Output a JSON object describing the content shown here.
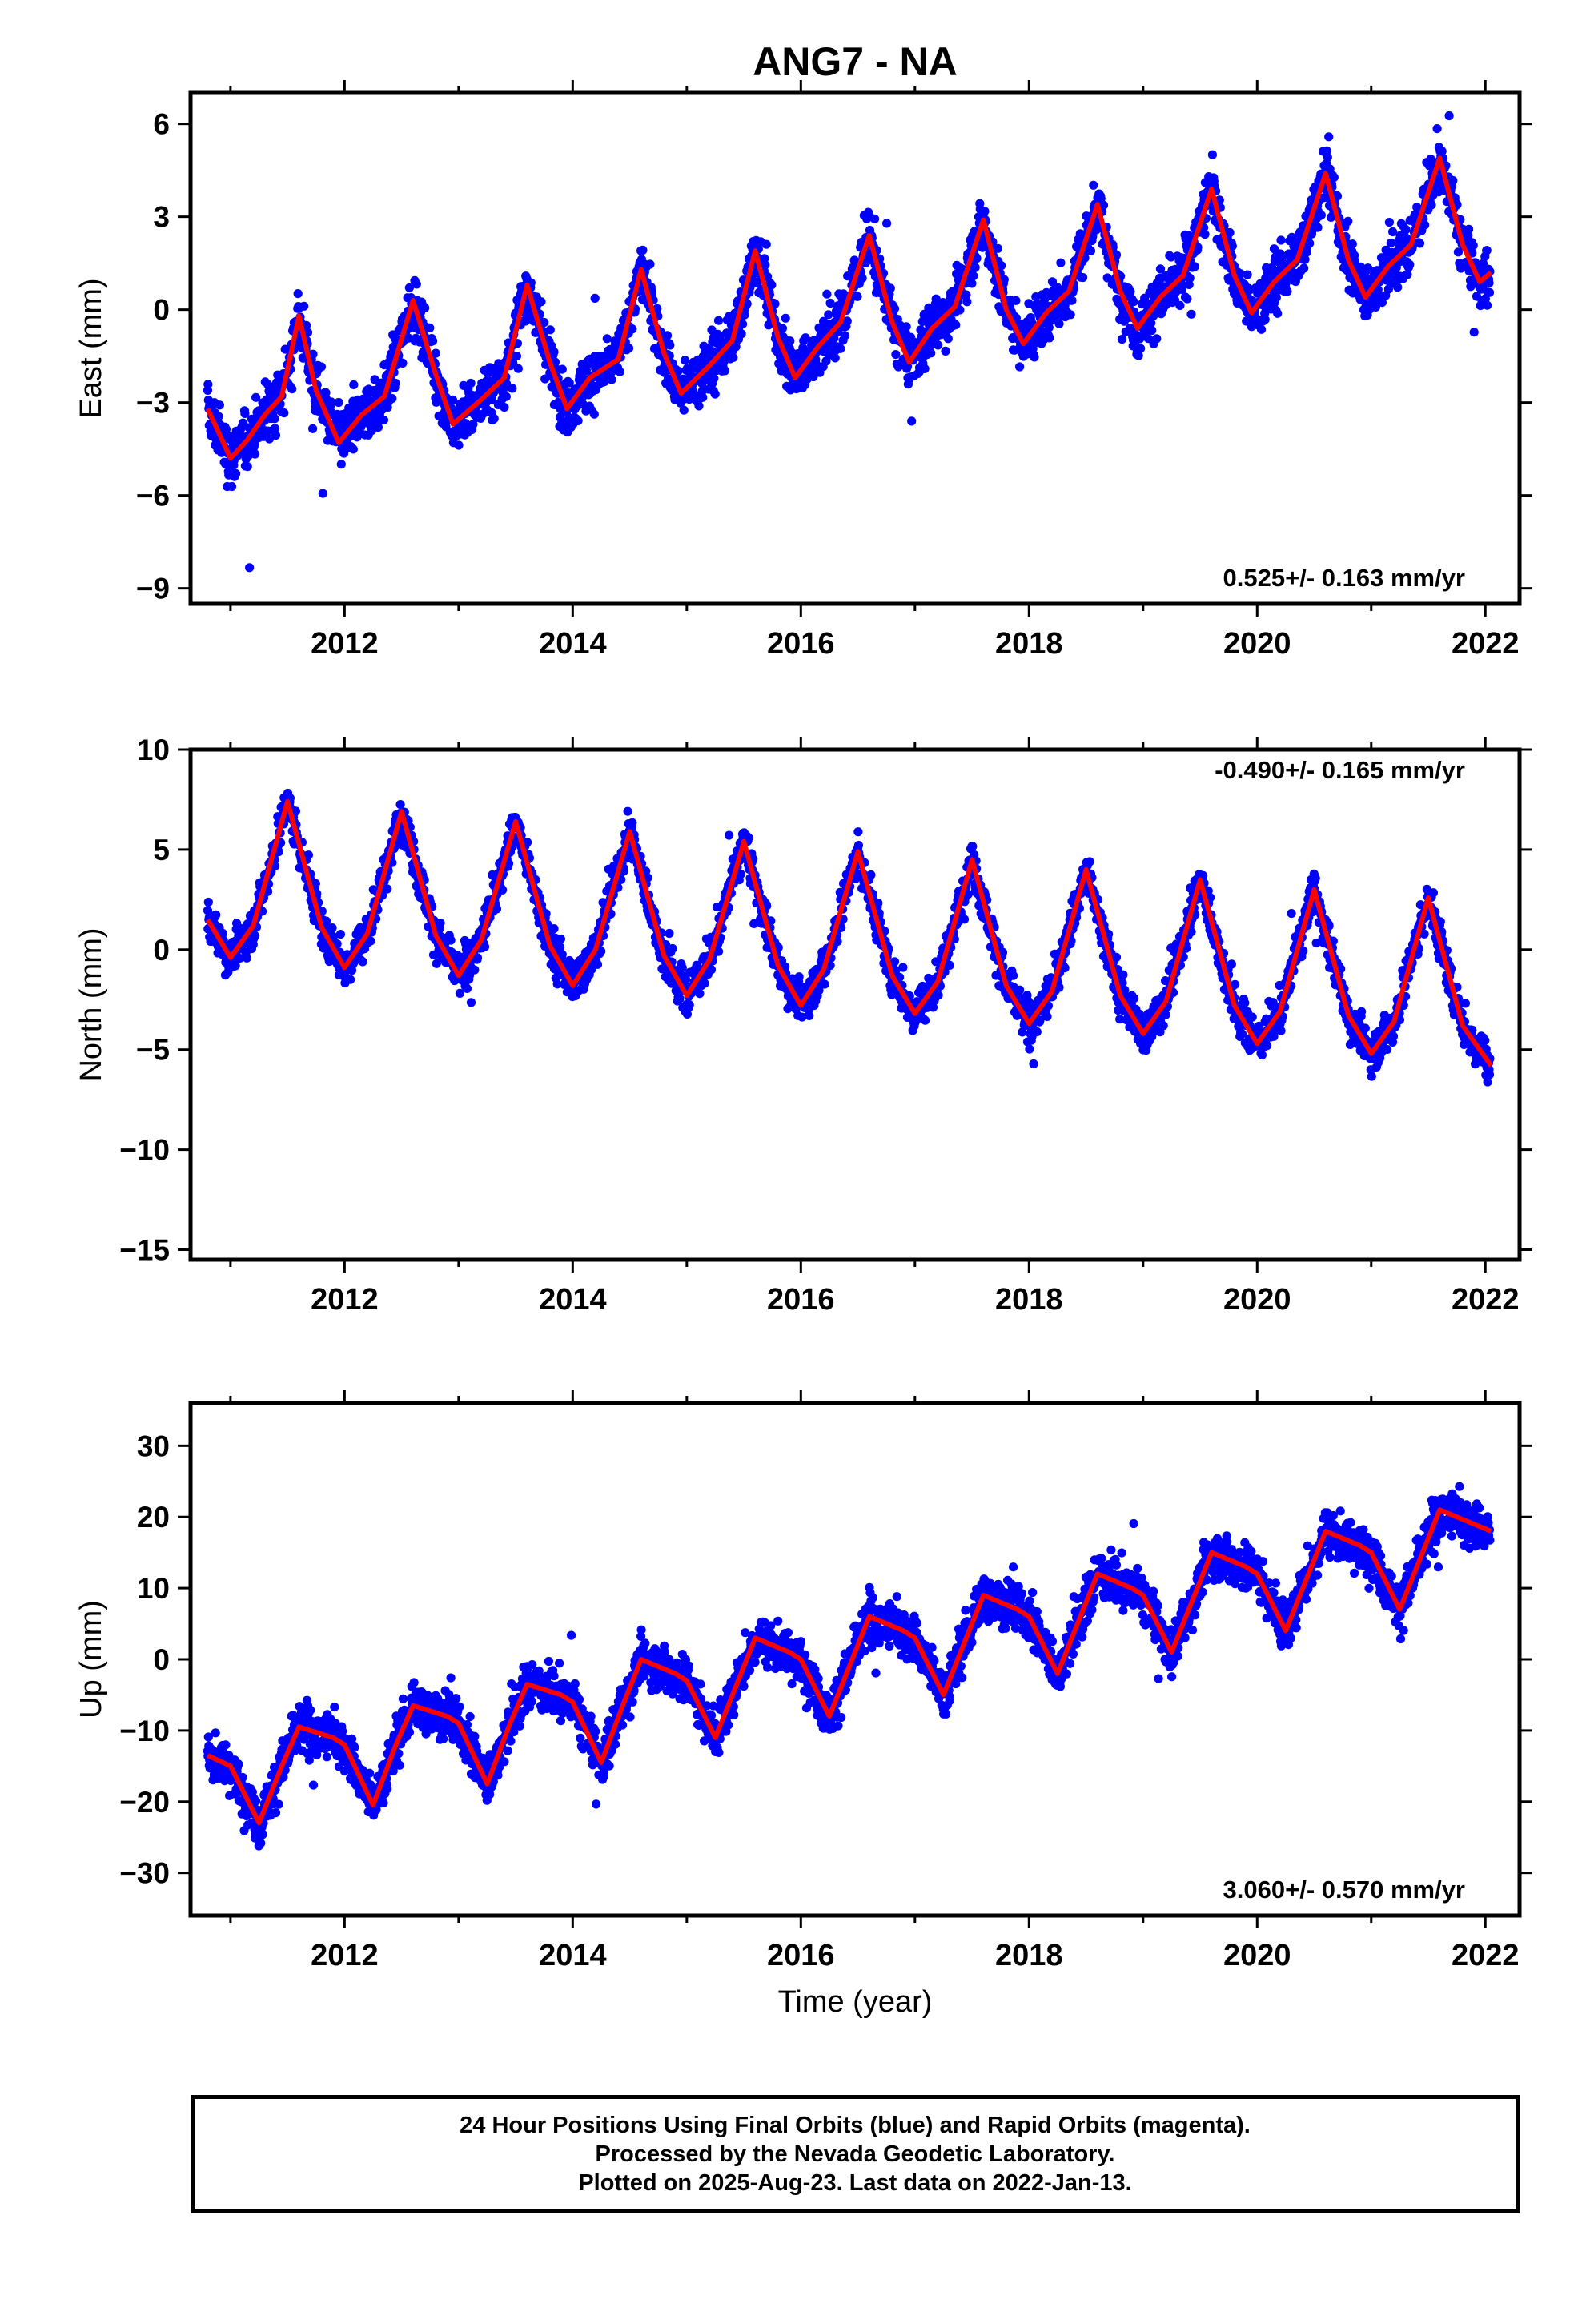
{
  "title": "ANG7 - NA",
  "xlabel": "Time (year)",
  "colors": {
    "points": "#0000ff",
    "fit": "#ff0000",
    "axis": "#000000",
    "background": "#ffffff"
  },
  "footer": [
    "24 Hour Positions Using Final Orbits (blue) and Rapid Orbits (magenta).",
    "Processed by the Nevada Geodetic Laboratory.",
    "Plotted on 2025-Aug-23. Last data on 2022-Jan-13."
  ],
  "chart_data": [
    {
      "type": "scatter",
      "component": "east",
      "ylabel": "East (mm)",
      "velocity_label": "0.525+/- 0.163 mm/yr",
      "velocity_position": "bottom-right",
      "xlim": [
        2010.65,
        2022.3
      ],
      "ylim": [
        -9.5,
        7.0
      ],
      "xticks": [
        2012,
        2014,
        2016,
        2018,
        2020,
        2022
      ],
      "yticks": [
        -9,
        -6,
        -3,
        0,
        3,
        6
      ],
      "series": [
        {
          "kind": "fit-line",
          "x": [
            2010.8,
            2011.0,
            2011.15,
            2011.3,
            2011.45,
            2011.6,
            2011.75,
            2011.95,
            2012.15,
            2012.35,
            2012.6,
            2012.8,
            2012.95,
            2013.2,
            2013.4,
            2013.6,
            2013.8,
            2013.95,
            2014.15,
            2014.4,
            2014.6,
            2014.8,
            2014.95,
            2015.2,
            2015.4,
            2015.6,
            2015.8,
            2015.95,
            2016.15,
            2016.35,
            2016.6,
            2016.8,
            2016.95,
            2017.15,
            2017.35,
            2017.6,
            2017.8,
            2017.95,
            2018.15,
            2018.35,
            2018.6,
            2018.8,
            2018.95,
            2019.15,
            2019.35,
            2019.6,
            2019.8,
            2019.95,
            2020.15,
            2020.35,
            2020.6,
            2020.8,
            2020.95,
            2021.15,
            2021.35,
            2021.6,
            2021.8,
            2021.95,
            2022.05
          ],
          "values": [
            -3.2,
            -4.8,
            -4.2,
            -3.4,
            -2.8,
            -0.2,
            -2.6,
            -4.3,
            -3.4,
            -2.8,
            0.3,
            -2.1,
            -3.7,
            -2.9,
            -2.2,
            0.8,
            -1.7,
            -3.2,
            -2.2,
            -1.6,
            1.3,
            -1.4,
            -2.7,
            -1.8,
            -1.0,
            1.9,
            -0.9,
            -2.2,
            -1.2,
            -0.4,
            2.4,
            -0.4,
            -1.7,
            -0.6,
            0.1,
            2.9,
            0.0,
            -1.1,
            -0.1,
            0.6,
            3.4,
            0.6,
            -0.6,
            0.4,
            1.1,
            3.9,
            1.1,
            -0.1,
            0.9,
            1.6,
            4.4,
            1.6,
            0.4,
            1.4,
            2.1,
            4.9,
            2.1,
            0.9,
            1.2
          ]
        }
      ]
    },
    {
      "type": "scatter",
      "component": "north",
      "ylabel": "North (mm)",
      "velocity_label": "-0.490+/- 0.165 mm/yr",
      "velocity_position": "top-right",
      "xlim": [
        2010.65,
        2022.3
      ],
      "ylim": [
        -15.5,
        10.0
      ],
      "xticks": [
        2012,
        2014,
        2016,
        2018,
        2020,
        2022
      ],
      "yticks": [
        -15,
        -10,
        -5,
        0,
        5,
        10
      ],
      "series": [
        {
          "kind": "fit-line",
          "x": [
            2010.8,
            2011.0,
            2011.2,
            2011.5,
            2011.8,
            2012.0,
            2012.2,
            2012.5,
            2012.8,
            2013.0,
            2013.2,
            2013.5,
            2013.8,
            2014.0,
            2014.2,
            2014.5,
            2014.8,
            2015.0,
            2015.2,
            2015.5,
            2015.8,
            2016.0,
            2016.2,
            2016.5,
            2016.8,
            2017.0,
            2017.2,
            2017.5,
            2017.8,
            2018.0,
            2018.2,
            2018.5,
            2018.8,
            2019.0,
            2019.2,
            2019.5,
            2019.8,
            2020.0,
            2020.2,
            2020.5,
            2020.8,
            2021.0,
            2021.2,
            2021.5,
            2021.8,
            2022.05
          ],
          "values": [
            1.5,
            -0.4,
            1.2,
            7.4,
            1.1,
            -0.9,
            0.8,
            6.9,
            0.7,
            -1.3,
            0.5,
            6.4,
            0.2,
            -1.8,
            0.0,
            5.9,
            -0.3,
            -2.3,
            -0.5,
            5.4,
            -0.8,
            -2.8,
            -1.0,
            4.9,
            -1.3,
            -3.2,
            -1.6,
            4.5,
            -1.8,
            -3.7,
            -2.1,
            4.0,
            -2.3,
            -4.2,
            -2.6,
            3.5,
            -2.8,
            -4.7,
            -3.1,
            3.0,
            -3.3,
            -5.2,
            -3.6,
            2.6,
            -3.8,
            -5.8
          ]
        }
      ]
    },
    {
      "type": "scatter",
      "component": "up",
      "ylabel": "Up (mm)",
      "velocity_label": "3.060+/- 0.570 mm/yr",
      "velocity_position": "bottom-right",
      "xlim": [
        2010.65,
        2022.3
      ],
      "ylim": [
        -36.0,
        36.0
      ],
      "xticks": [
        2012,
        2014,
        2016,
        2018,
        2020,
        2022
      ],
      "yticks": [
        -30,
        -20,
        -10,
        0,
        10,
        20,
        30
      ],
      "series": [
        {
          "kind": "fit-line",
          "x": [
            2010.8,
            2011.0,
            2011.25,
            2011.45,
            2011.6,
            2011.9,
            2012.0,
            2012.25,
            2012.45,
            2012.6,
            2012.9,
            2013.0,
            2013.25,
            2013.45,
            2013.6,
            2013.9,
            2014.0,
            2014.25,
            2014.45,
            2014.6,
            2014.9,
            2015.0,
            2015.25,
            2015.45,
            2015.6,
            2015.9,
            2016.0,
            2016.25,
            2016.45,
            2016.6,
            2016.9,
            2017.0,
            2017.25,
            2017.45,
            2017.6,
            2017.9,
            2018.0,
            2018.25,
            2018.45,
            2018.6,
            2018.9,
            2019.0,
            2019.25,
            2019.45,
            2019.6,
            2019.9,
            2020.0,
            2020.25,
            2020.45,
            2020.6,
            2020.9,
            2021.0,
            2021.25,
            2021.45,
            2021.6,
            2021.9,
            2022.05
          ],
          "values": [
            -13.5,
            -15.0,
            -23.0,
            -15.0,
            -9.5,
            -11.0,
            -12.0,
            -20.5,
            -12.0,
            -6.5,
            -8.0,
            -9.0,
            -17.5,
            -9.0,
            -3.5,
            -5.0,
            -6.0,
            -14.5,
            -6.0,
            0.0,
            -2.0,
            -3.0,
            -11.0,
            -3.0,
            3.0,
            1.0,
            0.0,
            -8.0,
            0.0,
            6.0,
            4.0,
            3.0,
            -5.0,
            3.0,
            9.0,
            7.0,
            6.0,
            -2.0,
            6.0,
            12.0,
            10.0,
            9.0,
            1.0,
            9.0,
            15.0,
            13.0,
            12.0,
            4.0,
            12.0,
            18.0,
            16.0,
            15.0,
            7.0,
            15.0,
            21.0,
            19.0,
            18.0
          ]
        }
      ]
    }
  ]
}
